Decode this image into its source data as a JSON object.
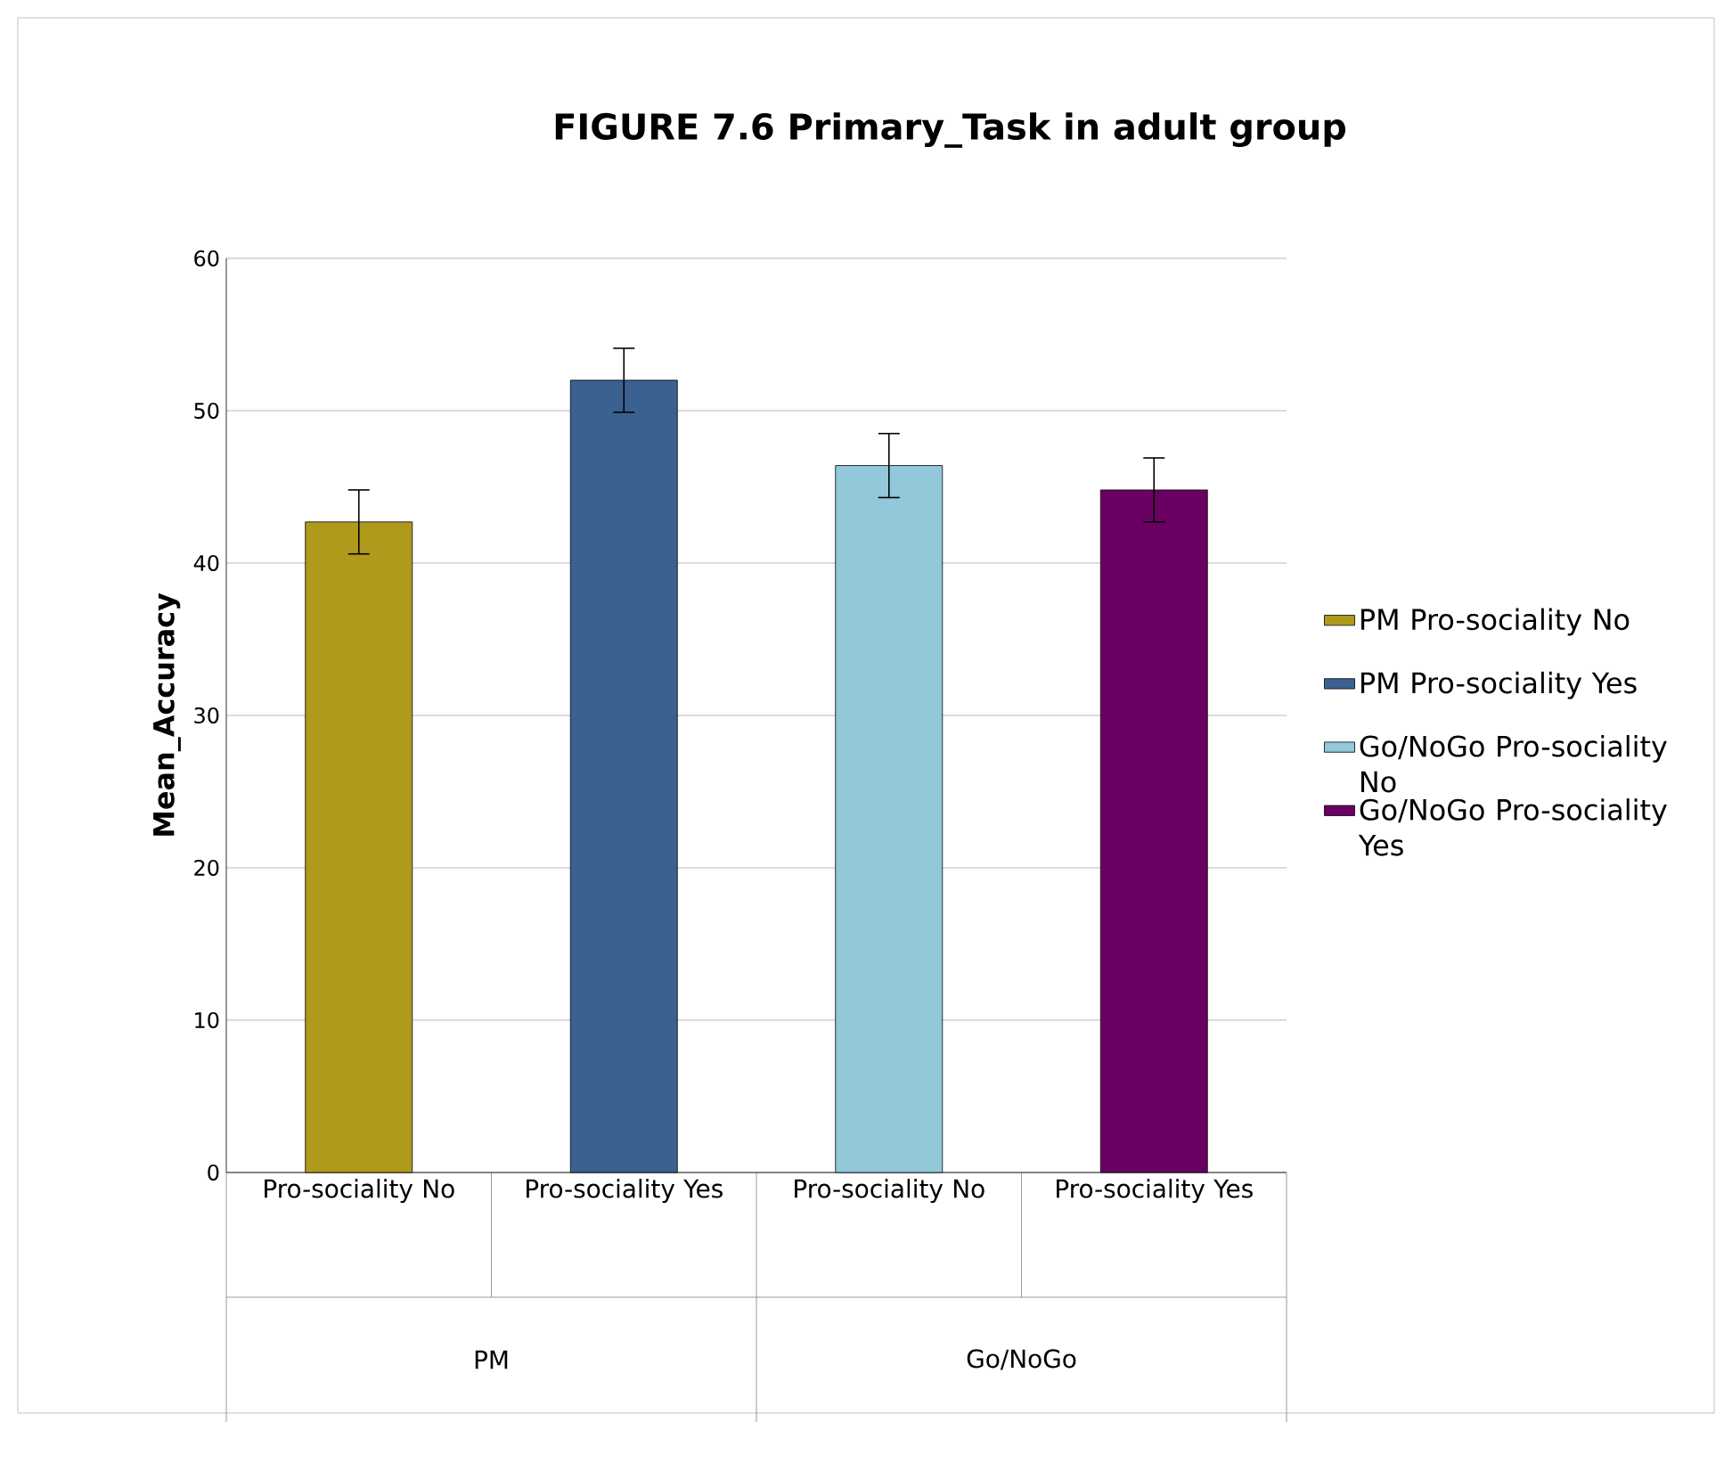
{
  "chart_data": {
    "type": "bar",
    "title": "FIGURE 7.6   Primary_Task  in adult group",
    "ylabel": "Mean_Accuracy",
    "categories": [
      "Pro-sociality No",
      "Pro-sociality Yes",
      "Pro-sociality No",
      "Pro-sociality Yes"
    ],
    "annotations": [
      "PM",
      "Go/NoGo"
    ],
    "series": [
      {
        "name": "PM Pro-sociality No",
        "color": "#b09a1c",
        "values": [
          42.7,
          null,
          null,
          null
        ],
        "errors": [
          2.1,
          null,
          null,
          null
        ]
      },
      {
        "name": "PM Pro-sociality Yes",
        "color": "#3b6191",
        "values": [
          null,
          52.0,
          null,
          null
        ],
        "errors": [
          null,
          2.1,
          null,
          null
        ]
      },
      {
        "name": "Go/NoGo Pro-sociality No",
        "color": "#92c8da",
        "values": [
          null,
          null,
          46.4,
          null
        ],
        "errors": [
          null,
          null,
          2.1,
          null
        ]
      },
      {
        "name": "Go/NoGo Pro-sociality Yes",
        "color": "#6a0062",
        "values": [
          null,
          null,
          null,
          44.8
        ],
        "errors": [
          null,
          null,
          null,
          2.1
        ]
      }
    ],
    "ylim": [
      0,
      60
    ],
    "yticks": [
      0,
      10,
      20,
      30,
      40,
      50,
      60
    ],
    "grid": "y",
    "legend": "right"
  }
}
